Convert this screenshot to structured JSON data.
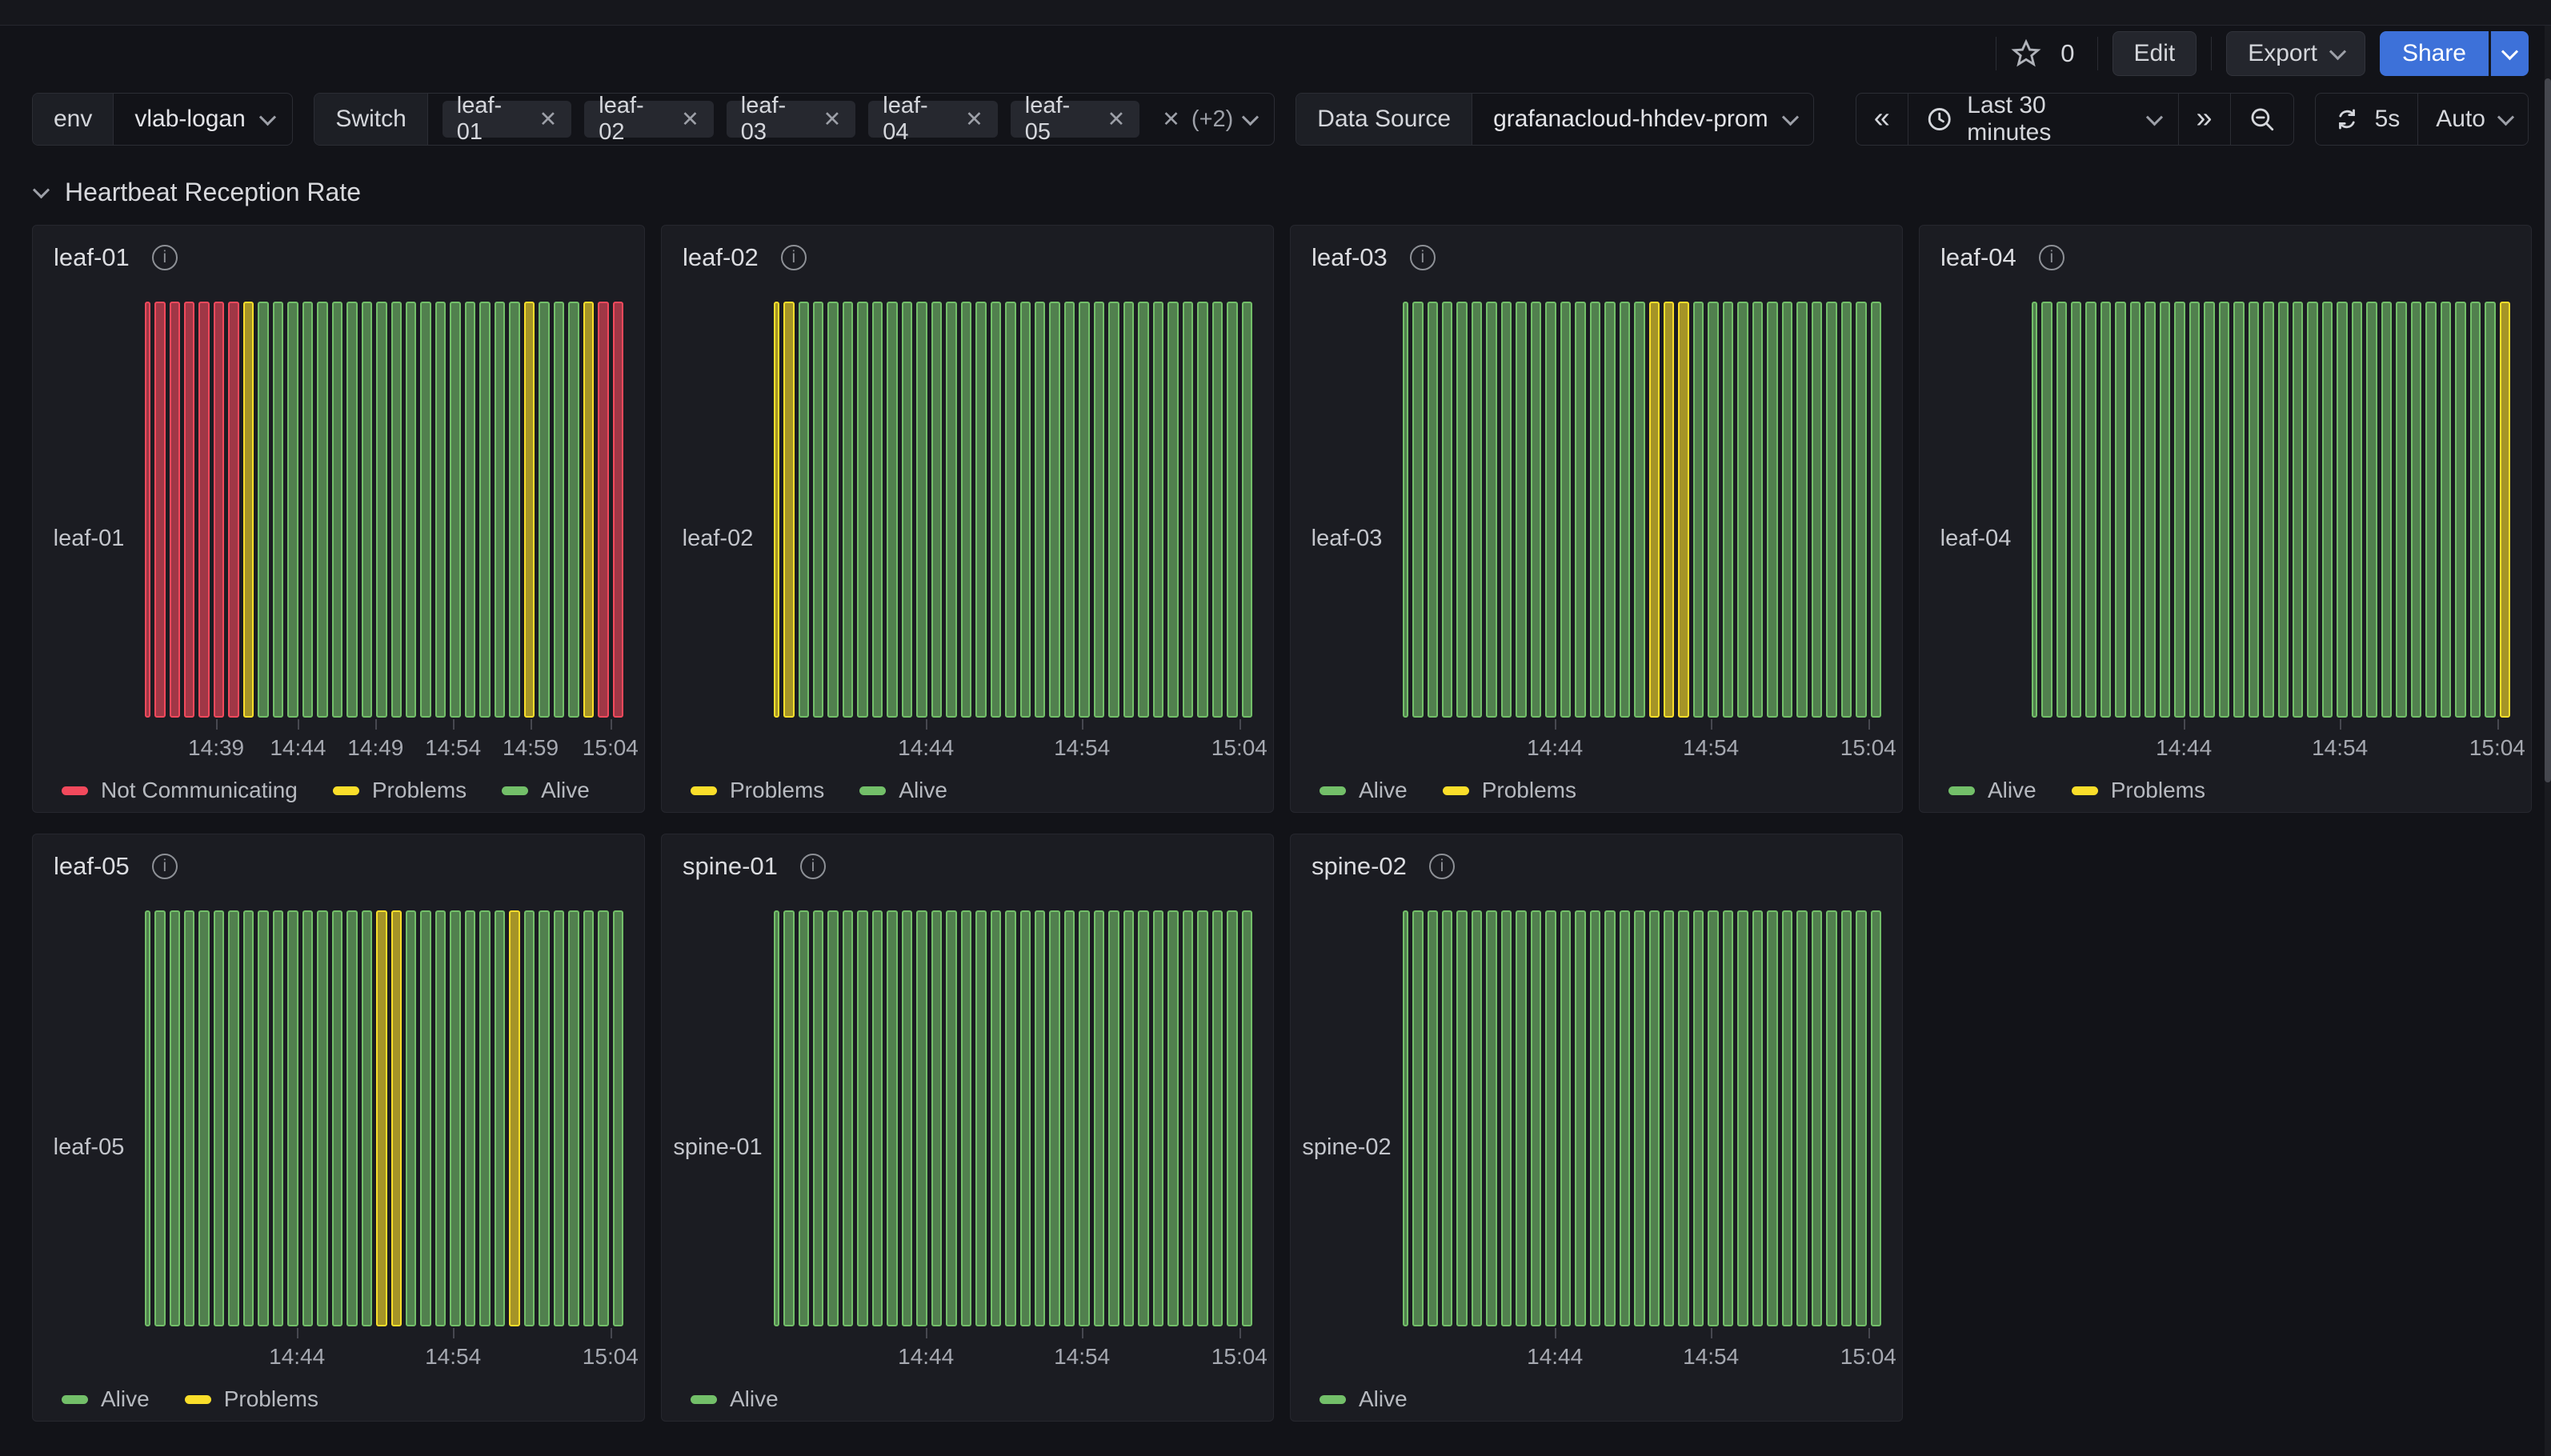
{
  "topbar": {
    "star_count": "0",
    "edit_label": "Edit",
    "export_label": "Export",
    "share_label": "Share"
  },
  "filters": {
    "env": {
      "label": "env",
      "value": "vlab-logan"
    },
    "switch": {
      "label": "Switch",
      "chips": [
        "leaf-01",
        "leaf-02",
        "leaf-03",
        "leaf-04",
        "leaf-05"
      ],
      "more_label": "(+2)"
    },
    "datasource": {
      "label": "Data Source",
      "value": "grafanacloud-hhdev-prom"
    },
    "time": {
      "range_label": "Last 30 minutes",
      "refresh_interval": "5s",
      "refresh_mode": "Auto"
    }
  },
  "row": {
    "title": "Heartbeat Reception Rate"
  },
  "colors": {
    "alive": "#73BF69",
    "problems": "#FADE2A",
    "not_communicating": "#F2495C",
    "accent_blue": "#3D71D9"
  },
  "state_labels": {
    "alive": "Alive",
    "problems": "Problems",
    "not_communicating": "Not Communicating"
  },
  "chart_data": [
    {
      "type": "status-history",
      "title": "leaf-01",
      "y_label": "leaf-01",
      "first_bar_thin": true,
      "segments": [
        [
          "not_communicating",
          7
        ],
        [
          "problems",
          1
        ],
        [
          "alive",
          18
        ],
        [
          "problems",
          1
        ],
        [
          "alive",
          3
        ],
        [
          "problems",
          1
        ],
        [
          "not_communicating",
          2
        ]
      ],
      "x_ticks": [
        {
          "label": "14:39",
          "pos": 0.149
        },
        {
          "label": "14:44",
          "pos": 0.32
        },
        {
          "label": "14:49",
          "pos": 0.482
        },
        {
          "label": "14:54",
          "pos": 0.644
        },
        {
          "label": "14:59",
          "pos": 0.806
        },
        {
          "label": "15:04",
          "pos": 0.973
        }
      ],
      "legend": [
        "not_communicating",
        "problems",
        "alive"
      ]
    },
    {
      "type": "status-history",
      "title": "leaf-02",
      "y_label": "leaf-02",
      "first_bar_thin": true,
      "segments": [
        [
          "problems",
          2
        ],
        [
          "alive",
          31
        ]
      ],
      "x_ticks": [
        {
          "label": "14:44",
          "pos": 0.318
        },
        {
          "label": "14:54",
          "pos": 0.644
        },
        {
          "label": "15:04",
          "pos": 0.973
        }
      ],
      "legend": [
        "problems",
        "alive"
      ]
    },
    {
      "type": "status-history",
      "title": "leaf-03",
      "y_label": "leaf-03",
      "first_bar_thin": true,
      "segments": [
        [
          "alive",
          17
        ],
        [
          "problems",
          3
        ],
        [
          "alive",
          13
        ]
      ],
      "x_ticks": [
        {
          "label": "14:44",
          "pos": 0.318
        },
        {
          "label": "14:54",
          "pos": 0.644
        },
        {
          "label": "15:04",
          "pos": 0.973
        }
      ],
      "legend": [
        "alive",
        "problems"
      ]
    },
    {
      "type": "status-history",
      "title": "leaf-04",
      "y_label": "leaf-04",
      "first_bar_thin": true,
      "segments": [
        [
          "alive",
          32
        ],
        [
          "problems",
          1
        ]
      ],
      "x_ticks": [
        {
          "label": "14:44",
          "pos": 0.318
        },
        {
          "label": "14:54",
          "pos": 0.644
        },
        {
          "label": "15:04",
          "pos": 0.973
        }
      ],
      "legend": [
        "alive",
        "problems"
      ]
    },
    {
      "type": "status-history",
      "title": "leaf-05",
      "y_label": "leaf-05",
      "first_bar_thin": true,
      "segments": [
        [
          "alive",
          16
        ],
        [
          "problems",
          2
        ],
        [
          "alive",
          7
        ],
        [
          "problems",
          1
        ],
        [
          "alive",
          7
        ]
      ],
      "x_ticks": [
        {
          "label": "14:44",
          "pos": 0.318
        },
        {
          "label": "14:54",
          "pos": 0.644
        },
        {
          "label": "15:04",
          "pos": 0.973
        }
      ],
      "legend": [
        "alive",
        "problems"
      ]
    },
    {
      "type": "status-history",
      "title": "spine-01",
      "y_label": "spine-01",
      "first_bar_thin": true,
      "segments": [
        [
          "alive",
          33
        ]
      ],
      "x_ticks": [
        {
          "label": "14:44",
          "pos": 0.318
        },
        {
          "label": "14:54",
          "pos": 0.644
        },
        {
          "label": "15:04",
          "pos": 0.973
        }
      ],
      "legend": [
        "alive"
      ]
    },
    {
      "type": "status-history",
      "title": "spine-02",
      "y_label": "spine-02",
      "first_bar_thin": true,
      "segments": [
        [
          "alive",
          33
        ]
      ],
      "x_ticks": [
        {
          "label": "14:44",
          "pos": 0.318
        },
        {
          "label": "14:54",
          "pos": 0.644
        },
        {
          "label": "15:04",
          "pos": 0.973
        }
      ],
      "legend": [
        "alive"
      ]
    }
  ]
}
